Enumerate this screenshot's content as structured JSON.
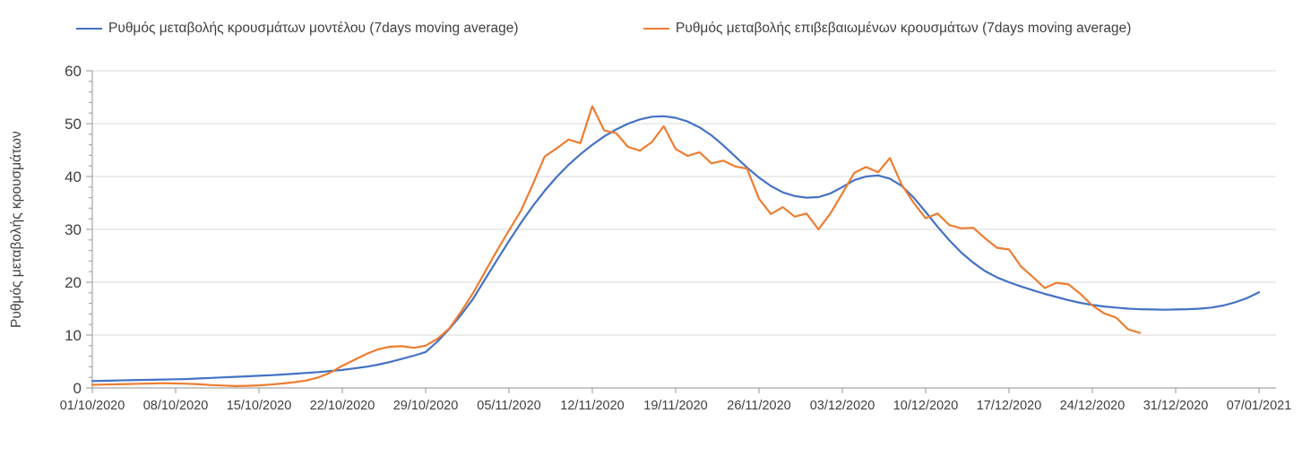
{
  "legend": {
    "items": [
      {
        "label": "Ρυθμός μεταβολής κρουσμάτων μοντέλου (7days moving average)",
        "color": "#4472C4"
      },
      {
        "label": "Ρυθμός μεταβολής επιβεβαιωμένων κρουσμάτων (7days moving average)",
        "color": "#ED7D31"
      }
    ]
  },
  "colors": {
    "series_model": "#4472C4",
    "series_observed": "#ED7D31",
    "gridline": "#d9d9d9",
    "axis": "#a6a6a6",
    "tick": "#a6a6a6",
    "text": "#404040"
  },
  "chart_data": {
    "type": "line",
    "title": "",
    "xlabel": "",
    "ylabel": "Ρυθμός μεταβολής κρουσμάτων",
    "ylim": [
      0,
      60
    ],
    "y_ticks": [
      0,
      10,
      20,
      30,
      40,
      50,
      60
    ],
    "y_minor_tick_step": 2,
    "grid": true,
    "legend_position": "top",
    "x_tick_labels": [
      "01/10/2020",
      "08/10/2020",
      "15/10/2020",
      "22/10/2020",
      "29/10/2020",
      "05/11/2020",
      "12/11/2020",
      "19/11/2020",
      "26/11/2020",
      "03/12/2020",
      "10/12/2020",
      "17/12/2020",
      "24/12/2020",
      "31/12/2020",
      "07/01/2021"
    ],
    "x_tick_interval_days": 7,
    "x_total_days": 98,
    "series": [
      {
        "name": "Ρυθμός μεταβολής κρουσμάτων μοντέλου (7days moving average)",
        "color": "#4472C4",
        "start_date": "01/10/2020",
        "end_date": "07/01/2021",
        "values": [
          1.3,
          1.35,
          1.4,
          1.45,
          1.5,
          1.55,
          1.6,
          1.65,
          1.7,
          1.8,
          1.9,
          2.0,
          2.1,
          2.2,
          2.3,
          2.4,
          2.55,
          2.7,
          2.85,
          3.0,
          3.2,
          3.4,
          3.7,
          4.0,
          4.4,
          4.9,
          5.5,
          6.1,
          6.8,
          8.8,
          11.2,
          13.9,
          16.9,
          20.6,
          24.2,
          27.8,
          31.2,
          34.4,
          37.3,
          39.9,
          42.2,
          44.2,
          46.0,
          47.6,
          48.9,
          50.0,
          50.8,
          51.3,
          51.4,
          51.1,
          50.4,
          49.3,
          47.8,
          45.9,
          43.8,
          41.7,
          39.8,
          38.2,
          37.0,
          36.3,
          36.0,
          36.1,
          36.8,
          38.0,
          39.3,
          40.0,
          40.2,
          39.6,
          38.2,
          36.0,
          33.3,
          30.5,
          27.9,
          25.6,
          23.7,
          22.1,
          20.9,
          20.0,
          19.2,
          18.5,
          17.8,
          17.2,
          16.6,
          16.1,
          15.7,
          15.4,
          15.2,
          15.0,
          14.9,
          14.85,
          14.8,
          14.85,
          14.9,
          15.0,
          15.2,
          15.6,
          16.2,
          17.0,
          18.1
        ]
      },
      {
        "name": "Ρυθμός μεταβολής επιβεβαιωμένων κρουσμάτων (7days moving average)",
        "color": "#ED7D31",
        "start_date": "01/10/2020",
        "end_date": "28/12/2020",
        "values": [
          0.6,
          0.65,
          0.7,
          0.75,
          0.8,
          0.85,
          0.9,
          0.85,
          0.8,
          0.7,
          0.55,
          0.45,
          0.35,
          0.4,
          0.5,
          0.65,
          0.85,
          1.1,
          1.4,
          2.0,
          2.9,
          4.2,
          5.3,
          6.4,
          7.3,
          7.8,
          7.9,
          7.6,
          8.0,
          9.3,
          11.3,
          14.5,
          18.0,
          22.0,
          26.0,
          29.8,
          33.5,
          38.5,
          43.8,
          45.3,
          47.0,
          46.3,
          53.3,
          48.7,
          48.2,
          45.6,
          44.9,
          46.5,
          49.5,
          45.2,
          43.9,
          44.6,
          42.5,
          43.0,
          41.9,
          41.5,
          35.8,
          32.9,
          34.2,
          32.4,
          33.0,
          30.0,
          33.0,
          36.8,
          40.7,
          41.8,
          40.8,
          43.5,
          38.4,
          35.0,
          32.1,
          33.0,
          30.8,
          30.2,
          30.3,
          28.3,
          26.5,
          26.2,
          23.0,
          21.0,
          18.9,
          19.9,
          19.6,
          17.8,
          15.6,
          14.1,
          13.3,
          11.1,
          10.4
        ]
      }
    ]
  }
}
